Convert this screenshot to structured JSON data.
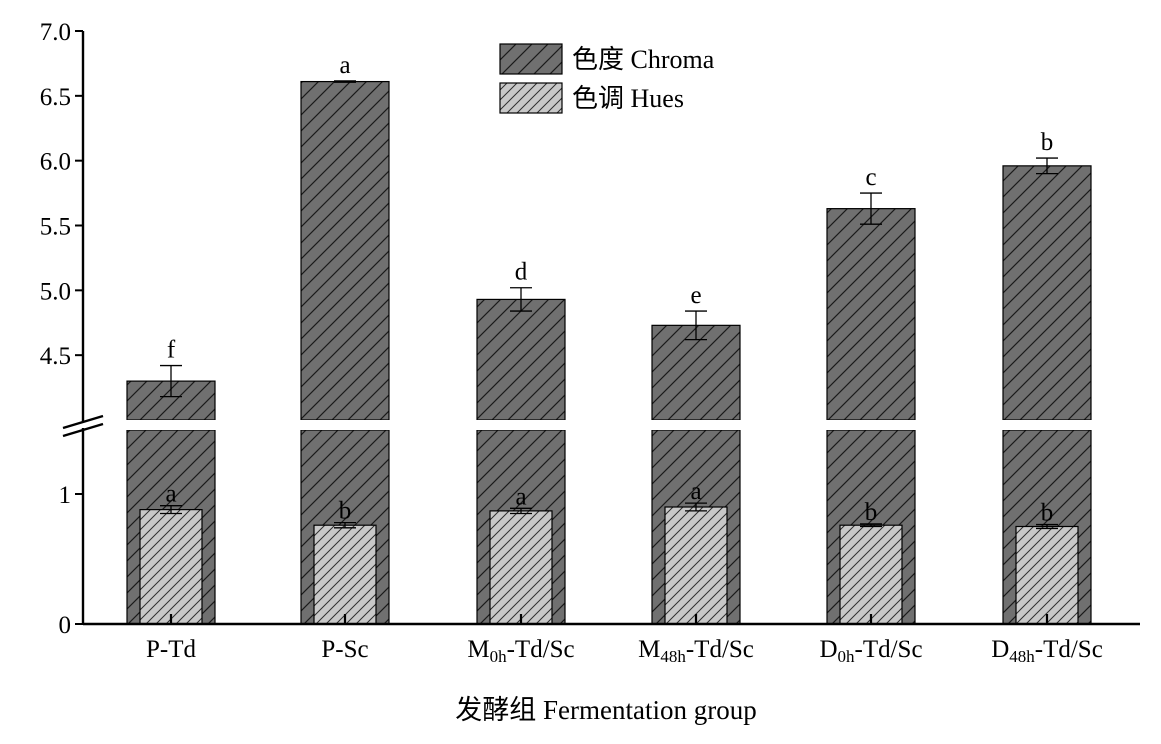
{
  "chart_data": {
    "type": "bar",
    "xlabel": "发酵组 Fermentation group",
    "ylabel": "",
    "categories": [
      {
        "main": "P-Td",
        "sub": "",
        "tail": ""
      },
      {
        "main": "P-Sc",
        "sub": "",
        "tail": ""
      },
      {
        "main": "M",
        "sub": "0h",
        "tail": "-Td/Sc"
      },
      {
        "main": "M",
        "sub": "48h",
        "tail": "-Td/Sc"
      },
      {
        "main": "D",
        "sub": "0h",
        "tail": "-Td/Sc"
      },
      {
        "main": "D",
        "sub": "48h",
        "tail": "-Td/Sc"
      }
    ],
    "axis": {
      "broken": true,
      "lower_range": [
        0,
        1.5
      ],
      "lower_ticks": [
        "0",
        "1"
      ],
      "upper_range": [
        4.0,
        7.0
      ],
      "upper_ticks": [
        "4.5",
        "5.0",
        "5.5",
        "6.0",
        "6.5",
        "7.0"
      ]
    },
    "series": [
      {
        "name": "色度 Chroma",
        "fill": "#707070",
        "pattern": "dense diagonal hatch",
        "values": [
          4.3,
          6.61,
          4.93,
          4.73,
          5.63,
          5.96
        ],
        "errors": [
          0.12,
          0.005,
          0.09,
          0.11,
          0.12,
          0.06
        ],
        "letters": [
          "f",
          "a",
          "d",
          "e",
          "c",
          "b"
        ]
      },
      {
        "name": "色调 Hues",
        "fill": "#c8c8c8",
        "pattern": "diagonal hatch",
        "values": [
          0.88,
          0.76,
          0.87,
          0.9,
          0.76,
          0.75
        ],
        "errors": [
          0.03,
          0.02,
          0.02,
          0.03,
          0.01,
          0.015
        ],
        "letters": [
          "a",
          "b",
          "a",
          "a",
          "b",
          "b"
        ]
      }
    ],
    "legend_position": "top-center"
  }
}
